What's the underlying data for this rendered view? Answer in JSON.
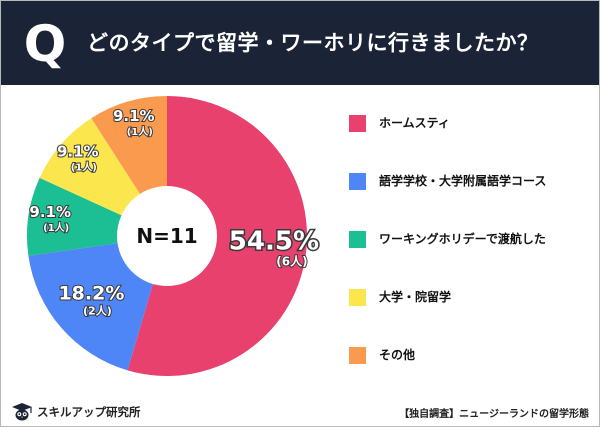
{
  "header": {
    "q_mark": "Q",
    "title": "どのタイプで留学・ワーホリに行きましたか？"
  },
  "chart_data": {
    "type": "pie",
    "center_label": "N=11",
    "slices": [
      {
        "name": "ホームスティ",
        "percent_label": "54.5%",
        "count_label": "(6人)",
        "value": 6,
        "color": "#e8416d"
      },
      {
        "name": "語学学校・大学附属語学コース",
        "percent_label": "18.2%",
        "count_label": "(2人)",
        "value": 2,
        "color": "#4f86f7"
      },
      {
        "name": "ワーキングホリデーで渡航した",
        "percent_label": "9.1%",
        "count_label": "(1人)",
        "value": 1,
        "color": "#1cbe94"
      },
      {
        "name": "大学・院留学",
        "percent_label": "9.1%",
        "count_label": "(1人)",
        "value": 1,
        "color": "#fbe64e"
      },
      {
        "name": "その他",
        "percent_label": "9.1%",
        "count_label": "(1人)",
        "value": 1,
        "color": "#fa9a4f"
      }
    ]
  },
  "footer": {
    "logo_icon": "owl-graduation-cap-icon",
    "brand_name": "スキルアップ研究所",
    "source_note": "【独自調査】ニュージーランドの留学形態"
  }
}
